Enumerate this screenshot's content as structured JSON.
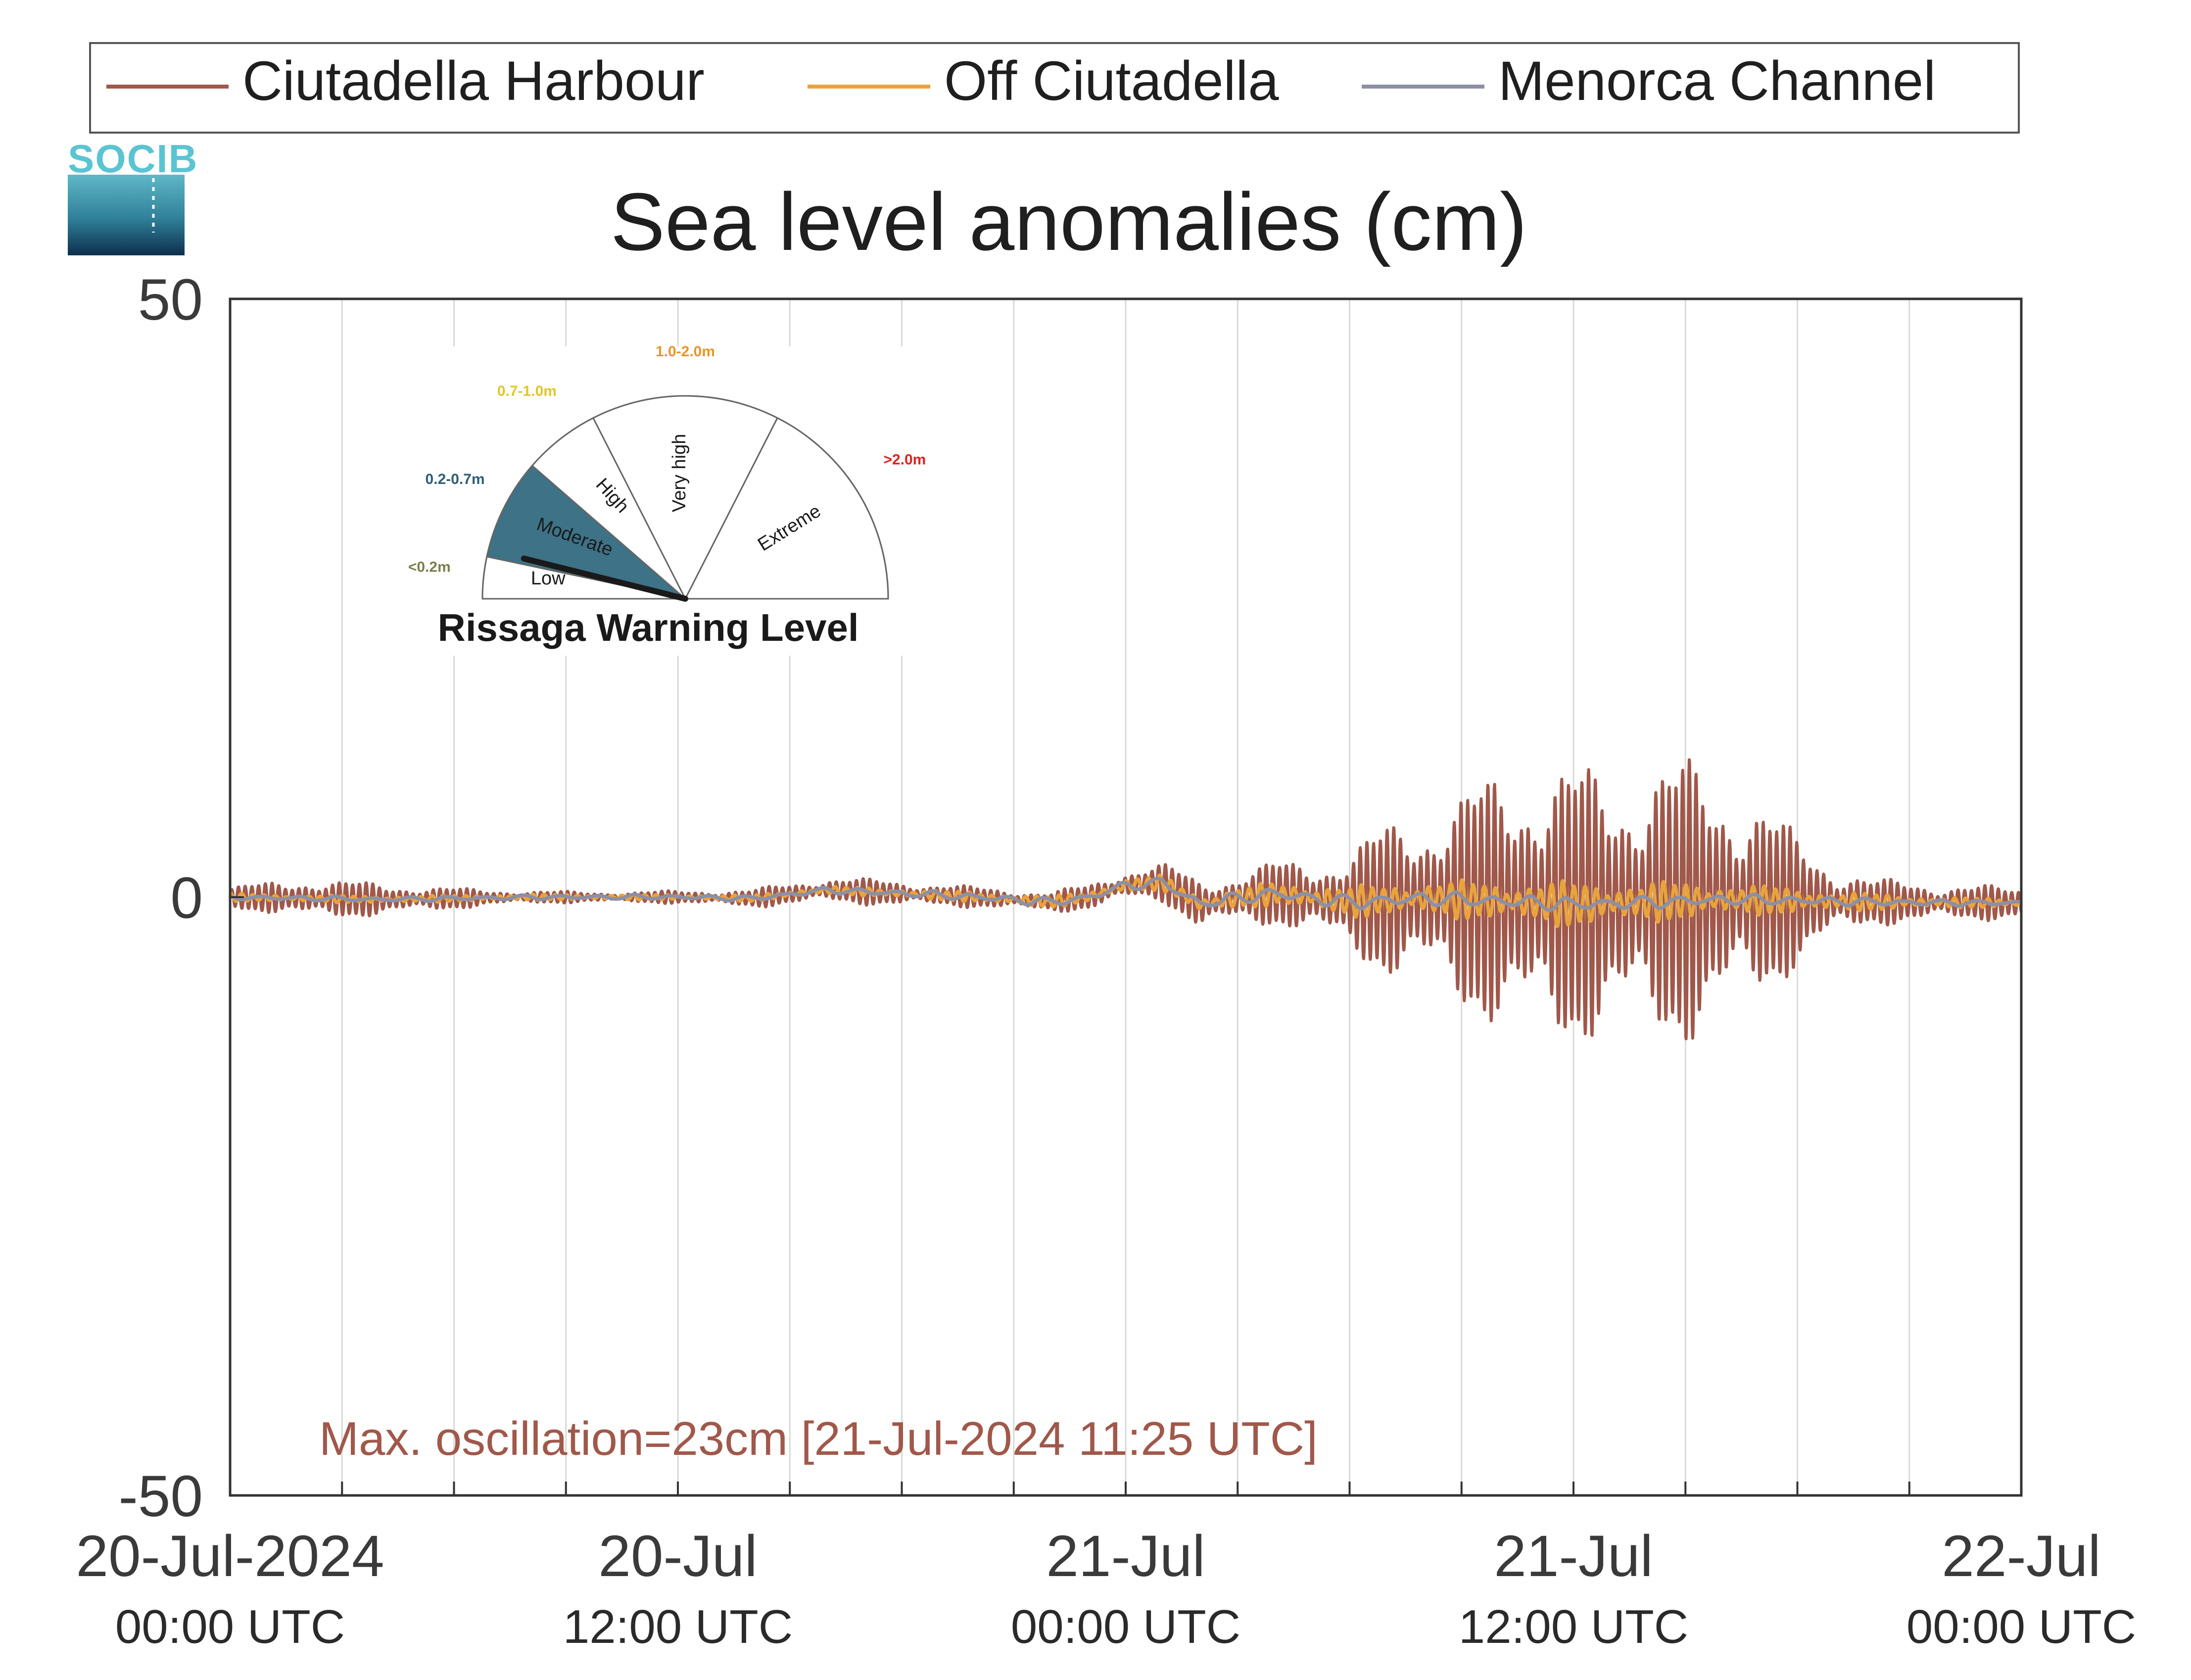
{
  "chart_data": {
    "type": "line",
    "title": "Sea level anomalies (cm)",
    "xlabel": "",
    "ylabel": "",
    "x_unit": "hours since 20-Jul-2024 00:00 UTC",
    "xlim": [
      0,
      48
    ],
    "ylim": [
      -50,
      50
    ],
    "y_ticks": [
      {
        "value": 50,
        "label": "50"
      },
      {
        "value": 0,
        "label": "0"
      },
      {
        "value": -50,
        "label": "-50"
      }
    ],
    "x_ticks": [
      {
        "value": 0,
        "line1": "20-Jul-2024",
        "line2": "00:00 UTC"
      },
      {
        "value": 12,
        "line1": "20-Jul",
        "line2": "12:00 UTC"
      },
      {
        "value": 24,
        "line1": "21-Jul",
        "line2": "00:00 UTC"
      },
      {
        "value": 36,
        "line1": "21-Jul",
        "line2": "12:00 UTC"
      },
      {
        "value": 48,
        "line1": "22-Jul",
        "line2": "00:00 UTC"
      }
    ],
    "x_gridlines": [
      3,
      6,
      9,
      12,
      15,
      18,
      21,
      24,
      27,
      30,
      33,
      36,
      39,
      42,
      45
    ],
    "grid": "vertical",
    "legend_position": "top",
    "series": [
      {
        "name": "Ciutadella Harbour",
        "color": "#a0584a",
        "envelope_x": [
          0,
          1,
          2,
          3,
          4,
          6,
          8,
          10,
          12,
          14,
          16,
          18,
          20,
          22,
          24,
          25,
          26,
          27,
          28,
          29,
          30,
          31,
          32,
          33,
          34,
          35,
          36,
          37,
          38,
          39,
          40,
          41,
          42,
          43,
          44,
          46,
          48
        ],
        "envelope_amplitude": [
          0.8,
          1.2,
          1.6,
          1.4,
          1.3,
          0.8,
          0.5,
          0.4,
          0.5,
          0.7,
          1.0,
          1.0,
          0.8,
          0.8,
          1.2,
          1.5,
          2.0,
          2.0,
          2.5,
          3.0,
          4.0,
          6.0,
          7.0,
          8.5,
          10.0,
          11.5,
          11.0,
          10.0,
          11.5,
          11.0,
          10.0,
          8.0,
          5.0,
          3.0,
          1.8,
          1.5,
          1.2
        ],
        "period_hours": 0.18
      },
      {
        "name": "Off Ciutadella",
        "color": "#e8a33d",
        "envelope_x": [
          0,
          12,
          24,
          27,
          30,
          33,
          36,
          39,
          42,
          45,
          48
        ],
        "envelope_amplitude": [
          0.3,
          0.2,
          0.5,
          0.8,
          1.2,
          1.5,
          1.8,
          1.5,
          1.0,
          0.5,
          0.3
        ],
        "period_hours": 0.3
      },
      {
        "name": "Menorca Channel",
        "color": "#8c90a6",
        "envelope_x": [
          0,
          12,
          24,
          30,
          36,
          42,
          48
        ],
        "envelope_amplitude": [
          0.2,
          0.2,
          0.4,
          0.6,
          0.6,
          0.4,
          0.2
        ],
        "period_hours": 1.0
      }
    ],
    "mean_level_x": [
      0,
      4,
      8,
      12,
      14,
      16,
      18,
      20,
      22,
      23,
      24,
      25,
      26,
      27,
      28,
      30,
      32,
      36,
      40,
      44,
      48
    ],
    "mean_level_y": [
      0,
      -0.2,
      0,
      0,
      -0.1,
      0.6,
      0.3,
      0,
      -0.4,
      0,
      1.0,
      1.2,
      -0.6,
      -0.1,
      0.3,
      -0.4,
      -0.1,
      -0.6,
      -0.2,
      -0.4,
      -0.5
    ],
    "annotation": "Max. oscillation=23cm [21-Jul-2024 11:25 UTC]",
    "annotation_color": "#a0584a"
  },
  "logo": {
    "text": "SOCIB"
  },
  "gauge": {
    "title": "Rissaga Warning Level",
    "current_level": "Moderate",
    "sectors": [
      {
        "label": "Low",
        "range": "<0.2m",
        "range_color": "#7b7f4a"
      },
      {
        "label": "Moderate",
        "range": "0.2-0.7m",
        "range_color": "#2e5f74",
        "fill": "#3d7287"
      },
      {
        "label": "High",
        "range": "0.7-1.0m",
        "range_color": "#e2c62b"
      },
      {
        "label": "Very high",
        "range": "1.0-2.0m",
        "range_color": "#e8962a"
      },
      {
        "label": "Extreme",
        "range": ">2.0m",
        "range_color": "#e02121"
      }
    ]
  }
}
